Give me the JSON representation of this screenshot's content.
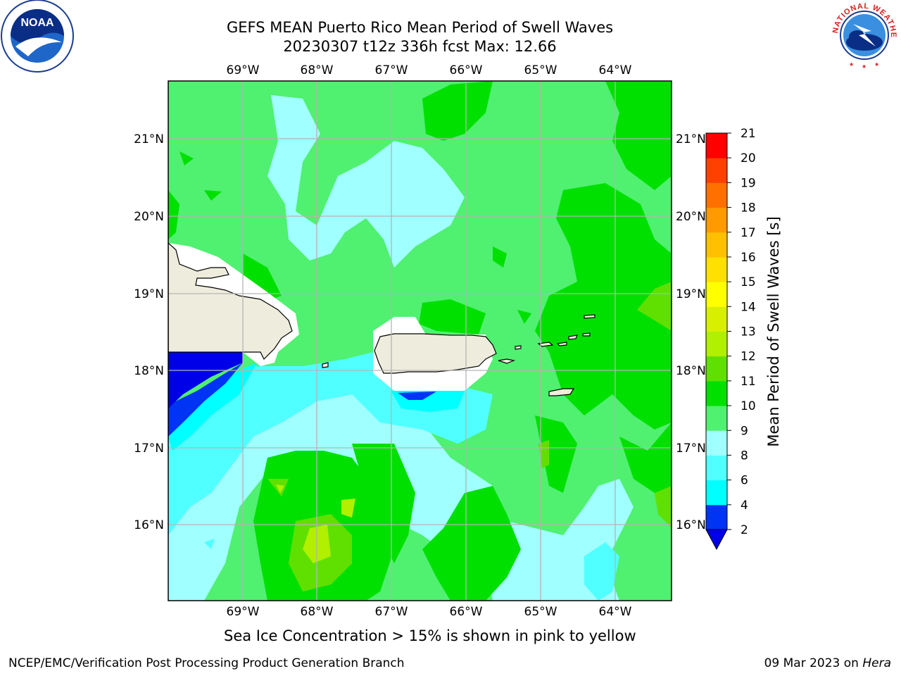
{
  "title": {
    "line1": "GEFS MEAN Puerto Rico Mean Period of Swell Waves",
    "line2": "20230307 t12z 336h fcst   Max: 12.66"
  },
  "logos": {
    "left": {
      "icon": "noaa-logo",
      "text": "NOAA"
    },
    "right": {
      "icon": "nws-logo",
      "ring_text": "NATIONAL WEATHER SERVICE"
    }
  },
  "map": {
    "region": "Puerto Rico",
    "lon_ticks": [
      "69°W",
      "68°W",
      "67°W",
      "66°W",
      "65°W",
      "64°W"
    ],
    "lat_ticks": [
      "21°N",
      "20°N",
      "19°N",
      "18°N",
      "17°N",
      "16°N"
    ],
    "colors": {
      "land": "#eeecdc",
      "grid": "#b4b4b4"
    }
  },
  "colorbar": {
    "label": "Mean Period of Swell Waves [s]",
    "ticks": [
      "2",
      "4",
      "6",
      "8",
      "9",
      "10",
      "11",
      "12",
      "13",
      "14",
      "15",
      "16",
      "17",
      "18",
      "19",
      "20",
      "21"
    ],
    "colors": [
      "#0034f4",
      "#00ffff",
      "#50ffff",
      "#a0ffff",
      "#50f070",
      "#00e000",
      "#60e000",
      "#b0f000",
      "#d8f000",
      "#ffff00",
      "#ffe000",
      "#ffc000",
      "#ff9a00",
      "#ff7000",
      "#ff4000",
      "#ff0000"
    ],
    "under_color": "#0000e8"
  },
  "note": "Sea Ice Concentration > 15% is shown in pink to yellow",
  "footer": {
    "left": "NCEP/EMC/Verification Post Processing Product Generation Branch",
    "date": "09 Mar 2023 on ",
    "machine": "Hera"
  }
}
